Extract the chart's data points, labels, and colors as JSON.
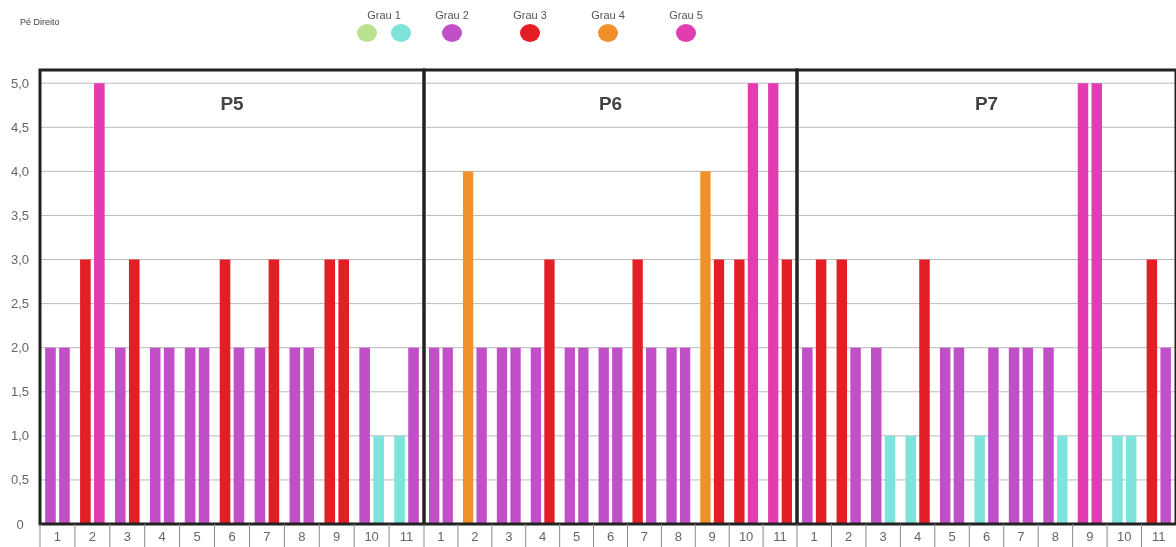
{
  "chart_data": [
    {
      "type": "other",
      "title": "Pé Direito",
      "categories": [
        "Grau 1",
        null,
        "Grau 2",
        "Grau 3",
        "Grau 4",
        "Grau 5"
      ],
      "colors": [
        "#b8e28f",
        "#7de3db",
        "#c150c8",
        "#e31e24",
        "#f0902a",
        "#e23cb0"
      ]
    },
    {
      "type": "bar",
      "title": "P5",
      "categories": [
        "1",
        "2",
        "3",
        "4",
        "5",
        "6",
        "7",
        "8",
        "9",
        "10",
        "11"
      ],
      "ylim": [
        0,
        5.15
      ],
      "yticks": [
        {
          "value": 0,
          "label": "0"
        },
        {
          "value": 0.5,
          "label": "0,5"
        },
        {
          "value": 1,
          "label": "1,0"
        },
        {
          "value": 1.5,
          "label": "1,5"
        },
        {
          "value": 2,
          "label": "2,0"
        },
        {
          "value": 2.5,
          "label": "2,5"
        },
        {
          "value": 3,
          "label": "3,0"
        },
        {
          "value": 3.5,
          "label": "3,5"
        },
        {
          "value": 4,
          "label": "4,0"
        },
        {
          "value": 4.5,
          "label": "4,5"
        },
        {
          "value": 5,
          "label": "5,0"
        }
      ],
      "grid": "y",
      "series": [
        {
          "values": [
            2,
            3,
            2,
            2,
            2,
            3,
            2,
            2,
            3,
            2,
            1
          ],
          "colors": [
            "#c150c8",
            "#e31e24",
            "#c150c8",
            "#c150c8",
            "#c150c8",
            "#e31e24",
            "#c150c8",
            "#c150c8",
            "#e31e24",
            "#c150c8",
            "#7de3db"
          ]
        },
        {
          "values": [
            2,
            5,
            3,
            2,
            2,
            2,
            3,
            2,
            3,
            1,
            2
          ],
          "colors": [
            "#c150c8",
            "#e23cb0",
            "#e31e24",
            "#c150c8",
            "#c150c8",
            "#c150c8",
            "#e31e24",
            "#c150c8",
            "#e31e24",
            "#7de3db",
            "#c150c8"
          ]
        }
      ]
    },
    {
      "type": "bar",
      "title": "P6",
      "categories": [
        "1",
        "2",
        "3",
        "4",
        "5",
        "6",
        "7",
        "8",
        "9",
        "10",
        "11"
      ],
      "ylim": [
        0,
        5.15
      ],
      "yticks": [
        0,
        0.5,
        1,
        1.5,
        2,
        2.5,
        3,
        3.5,
        4,
        4.5,
        5
      ],
      "grid": "y",
      "tick_labels": "x",
      "series": [
        {
          "values": [
            2,
            4,
            2,
            2,
            2,
            2,
            3,
            2,
            4,
            3,
            5
          ],
          "colors": [
            "#c150c8",
            "#f0902a",
            "#c150c8",
            "#c150c8",
            "#c150c8",
            "#c150c8",
            "#e31e24",
            "#c150c8",
            "#f0902a",
            "#e31e24",
            "#e23cb0"
          ]
        },
        {
          "values": [
            2,
            2,
            2,
            3,
            2,
            2,
            2,
            2,
            3,
            5,
            3
          ],
          "colors": [
            "#c150c8",
            "#c150c8",
            "#c150c8",
            "#e31e24",
            "#c150c8",
            "#c150c8",
            "#c150c8",
            "#c150c8",
            "#e31e24",
            "#e23cb0",
            "#e31e24"
          ]
        }
      ]
    },
    {
      "type": "bar",
      "title": "P7",
      "categories": [
        "1",
        "2",
        "3",
        "4",
        "5",
        "6",
        "7",
        "8",
        "9",
        "10",
        "11"
      ],
      "ylim": [
        0,
        5.15
      ],
      "yticks": [
        0,
        0.5,
        1,
        1.5,
        2,
        2.5,
        3,
        3.5,
        4,
        4.5,
        5
      ],
      "grid": "y",
      "tick_labels": "x",
      "series": [
        {
          "values": [
            2,
            3,
            2,
            1,
            2,
            1,
            2,
            2,
            5,
            1,
            3
          ],
          "colors": [
            "#c150c8",
            "#e31e24",
            "#c150c8",
            "#7de3db",
            "#c150c8",
            "#7de3db",
            "#c150c8",
            "#c150c8",
            "#e23cb0",
            "#7de3db",
            "#e31e24"
          ]
        },
        {
          "values": [
            3,
            2,
            1,
            3,
            2,
            2,
            2,
            1,
            5,
            1,
            2
          ],
          "colors": [
            "#e31e24",
            "#c150c8",
            "#7de3db",
            "#e31e24",
            "#c150c8",
            "#c150c8",
            "#c150c8",
            "#7de3db",
            "#e23cb0",
            "#7de3db",
            "#c150c8"
          ]
        }
      ]
    }
  ]
}
